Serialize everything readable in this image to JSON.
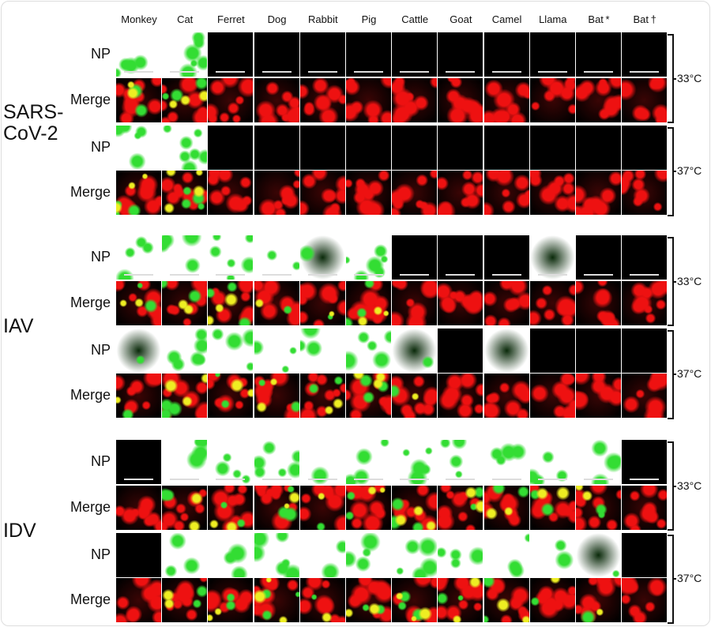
{
  "columns": [
    "Monkey",
    "Cat",
    "Ferret",
    "Dog",
    "Rabbit",
    "Pig",
    "Cattle",
    "Goat",
    "Camel",
    "Llama",
    "Bat *",
    "Bat †"
  ],
  "colors": {
    "np_stain": "#33dd33",
    "cell_stain": "#ee1111",
    "overlap": "#eeee22"
  },
  "blocks": [
    {
      "virus": "SARS-\nCoV-2",
      "groups": [
        {
          "temperature": "33°C",
          "rows": [
            {
              "label": "NP"
            },
            {
              "label": "Merge"
            }
          ],
          "np_signal": [
            0.6,
            0.9,
            0,
            0,
            0,
            0,
            0,
            0,
            0,
            0,
            0,
            0
          ]
        },
        {
          "temperature": "37°C",
          "rows": [
            {
              "label": "NP"
            },
            {
              "label": "Merge"
            }
          ],
          "np_signal": [
            0.7,
            1,
            0,
            0,
            0,
            0,
            0,
            0,
            0,
            0,
            0,
            0
          ]
        }
      ]
    },
    {
      "virus": "IAV",
      "groups": [
        {
          "temperature": "33°C",
          "rows": [
            {
              "label": "NP"
            },
            {
              "label": "Merge"
            }
          ],
          "np_signal": [
            0.5,
            0.6,
            0.8,
            0.3,
            0.1,
            0.9,
            0,
            0,
            0,
            0.05,
            0,
            0
          ]
        },
        {
          "temperature": "37°C",
          "rows": [
            {
              "label": "NP"
            },
            {
              "label": "Merge"
            }
          ],
          "np_signal": [
            0.1,
            0.8,
            0.6,
            0.4,
            0.4,
            0.7,
            0.1,
            0,
            0.05,
            0,
            0,
            0
          ]
        }
      ]
    },
    {
      "virus": "IDV",
      "groups": [
        {
          "temperature": "33°C",
          "rows": [
            {
              "label": "NP"
            },
            {
              "label": "Merge"
            }
          ],
          "np_signal": [
            0,
            0.5,
            0.5,
            0.8,
            0.2,
            0.6,
            0.7,
            0.6,
            0.6,
            0.5,
            0.5,
            0
          ]
        },
        {
          "temperature": "37°C",
          "rows": [
            {
              "label": "NP"
            },
            {
              "label": "Merge"
            }
          ],
          "np_signal": [
            0,
            0.4,
            0.4,
            0.8,
            0.3,
            0.6,
            0.7,
            0.6,
            0.4,
            0.3,
            0.1,
            0
          ]
        }
      ]
    }
  ]
}
